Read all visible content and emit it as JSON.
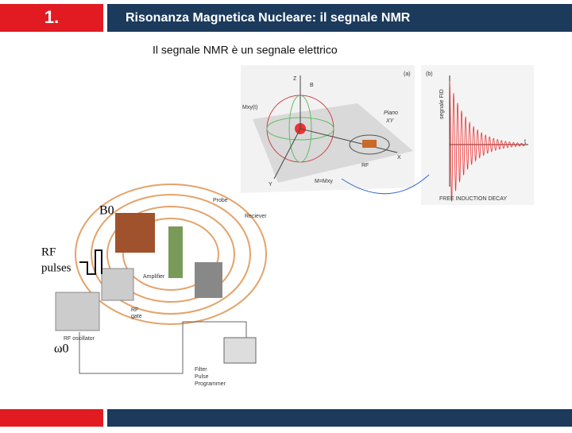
{
  "header": {
    "number": "1.",
    "title": "Risonanza Magnetica Nucleare: il segnale NMR"
  },
  "subtitle": "Il segnale NMR è un segnale elettrico",
  "figure_a": {
    "panel": "(a)",
    "labels": [
      "Z",
      "B",
      "Mxy(t)",
      "Piano",
      "XY",
      "X",
      "Y",
      "RF",
      "M=Mxy"
    ]
  },
  "figure_b": {
    "panel": "(b)",
    "y_label": "segnale FID",
    "t": "t",
    "caption": "FREE INDUCTION DECAY"
  },
  "apparatus": {
    "labels": [
      "B0",
      "RF",
      "pulses",
      "ω0",
      "Probe",
      "Reciever",
      "Amplifier",
      "RF",
      "gate",
      "RF oscillator",
      "Filter",
      "Pulse",
      "Programmer"
    ]
  }
}
